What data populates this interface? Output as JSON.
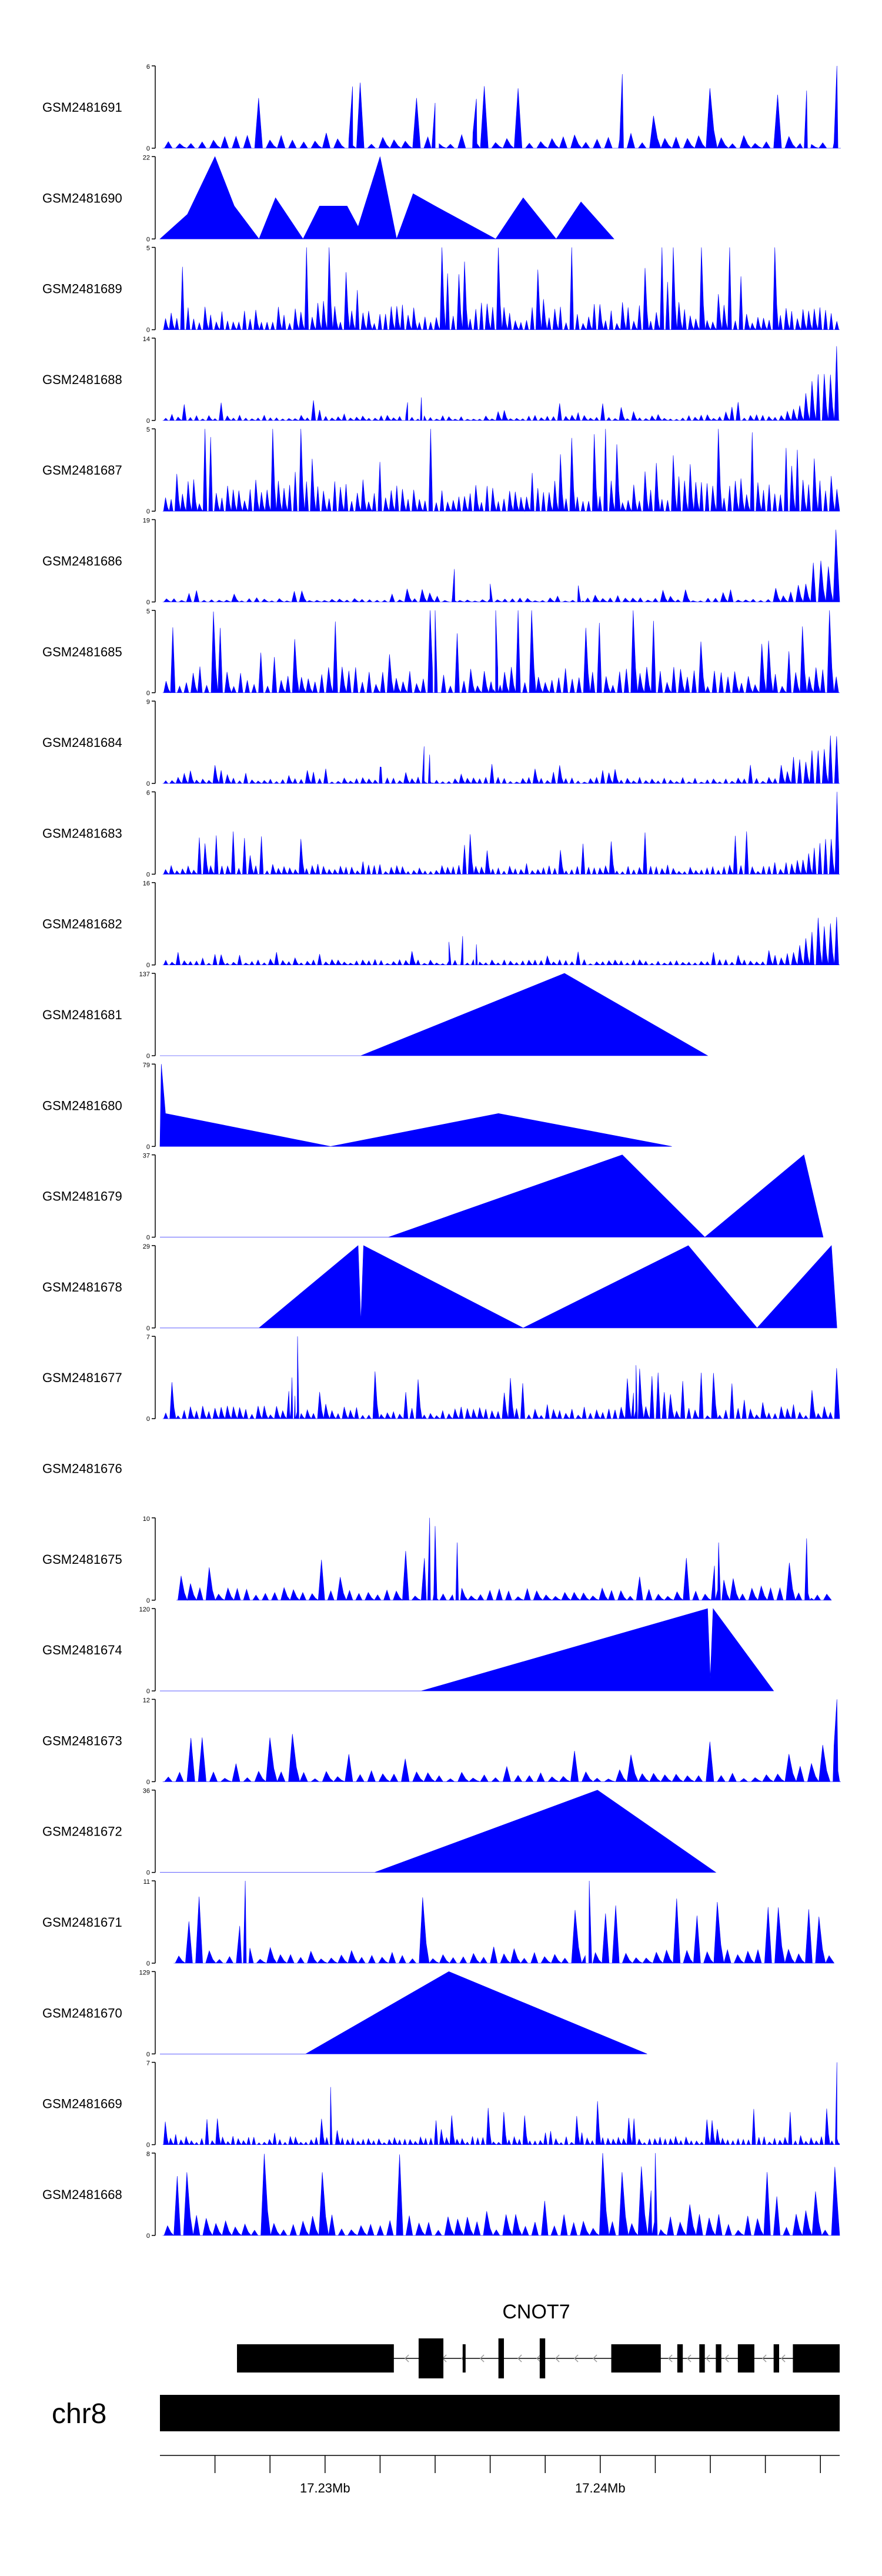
{
  "chart_data": {
    "type": "area",
    "xlim_mb": [
      17.222,
      17.2467
    ],
    "axis_ticks": [
      {
        "mb": 17.224,
        "label": ""
      },
      {
        "mb": 17.226,
        "label": ""
      },
      {
        "mb": 17.228,
        "label": "17.23Mb"
      },
      {
        "mb": 17.23,
        "label": ""
      },
      {
        "mb": 17.232,
        "label": ""
      },
      {
        "mb": 17.234,
        "label": ""
      },
      {
        "mb": 17.236,
        "label": ""
      },
      {
        "mb": 17.238,
        "label": "17.24Mb"
      },
      {
        "mb": 17.24,
        "label": ""
      },
      {
        "mb": 17.242,
        "label": ""
      },
      {
        "mb": 17.244,
        "label": ""
      },
      {
        "mb": 17.246,
        "label": ""
      }
    ],
    "chromosome": "chr8",
    "gene": {
      "name": "CNOT7",
      "start_mb": 17.2248,
      "end_mb": 17.2467,
      "exons": [
        [
          17.2248,
          17.2305
        ],
        [
          17.2314,
          17.2323
        ],
        [
          17.233,
          17.2331
        ],
        [
          17.2343,
          17.2345
        ],
        [
          17.2358,
          17.236
        ],
        [
          17.2384,
          17.2402
        ],
        [
          17.2408,
          17.241
        ],
        [
          17.2416,
          17.2418
        ],
        [
          17.2422,
          17.2424
        ],
        [
          17.243,
          17.2436
        ],
        [
          17.2443,
          17.2445
        ],
        [
          17.245,
          17.2467
        ]
      ]
    },
    "series": [
      {
        "name": "GSM2481691",
        "ymax": 6,
        "kind": "peaks",
        "seed": 11,
        "density": 60,
        "base": 0.15,
        "max_frac": 0.9,
        "tail": 0.0,
        "points": [
          [
            17.229,
            0.75
          ],
          [
            17.232,
            0.55
          ],
          [
            17.2335,
            0.6
          ],
          [
            17.2388,
            0.9
          ],
          [
            17.2455,
            0.7
          ],
          [
            17.2466,
            1.0
          ]
        ]
      },
      {
        "name": "GSM2481690",
        "ymax": 22,
        "kind": "points",
        "points": [
          [
            17.222,
            0
          ],
          [
            17.223,
            0.3
          ],
          [
            17.224,
            1.0
          ],
          [
            17.2247,
            0.4
          ],
          [
            17.2256,
            0
          ],
          [
            17.2262,
            0.5
          ],
          [
            17.2272,
            0
          ],
          [
            17.2278,
            0.4
          ],
          [
            17.2288,
            0.4
          ],
          [
            17.2292,
            0.15
          ],
          [
            17.23,
            1.0
          ],
          [
            17.2306,
            0
          ],
          [
            17.2312,
            0.55
          ],
          [
            17.232,
            0.4
          ],
          [
            17.2342,
            0
          ],
          [
            17.2352,
            0.5
          ],
          [
            17.2364,
            0
          ],
          [
            17.2373,
            0.45
          ],
          [
            17.2385,
            0
          ]
        ]
      },
      {
        "name": "GSM2481689",
        "ymax": 5,
        "kind": "peaks",
        "seed": 23,
        "density": 120,
        "base": 0.25,
        "max_frac": 0.95,
        "tail": 0.0,
        "points": []
      },
      {
        "name": "GSM2481688",
        "ymax": 14,
        "kind": "peaks",
        "seed": 37,
        "density": 110,
        "base": 0.05,
        "max_frac": 0.2,
        "tail": 0.95,
        "points": [
          [
            17.2315,
            0.28
          ],
          [
            17.231,
            0.22
          ]
        ]
      },
      {
        "name": "GSM2481687",
        "ymax": 5,
        "kind": "peaks",
        "seed": 41,
        "density": 120,
        "base": 0.3,
        "max_frac": 0.98,
        "tail": 0.0,
        "points": []
      },
      {
        "name": "GSM2481686",
        "ymax": 19,
        "kind": "peaks",
        "seed": 53,
        "density": 90,
        "base": 0.04,
        "max_frac": 0.15,
        "tail": 1.0,
        "points": [
          [
            17.2327,
            0.4
          ],
          [
            17.234,
            0.22
          ],
          [
            17.2372,
            0.2
          ]
        ]
      },
      {
        "name": "GSM2481685",
        "ymax": 5,
        "kind": "peaks",
        "seed": 67,
        "density": 100,
        "base": 0.25,
        "max_frac": 0.95,
        "tail": 0.0,
        "points": [
          [
            17.232,
            1.0
          ],
          [
            17.2342,
            1.0
          ]
        ]
      },
      {
        "name": "GSM2481684",
        "ymax": 9,
        "kind": "peaks",
        "seed": 71,
        "density": 110,
        "base": 0.06,
        "max_frac": 0.18,
        "tail": 0.95,
        "points": [
          [
            17.2316,
            0.45
          ],
          [
            17.2318,
            0.35
          ],
          [
            17.23,
            0.2
          ]
        ]
      },
      {
        "name": "GSM2481683",
        "ymax": 6,
        "kind": "peaks",
        "seed": 83,
        "density": 120,
        "base": 0.1,
        "max_frac": 0.45,
        "tail": 0.6,
        "points": [
          [
            17.2466,
            1.0
          ]
        ]
      },
      {
        "name": "GSM2481682",
        "ymax": 16,
        "kind": "peaks",
        "seed": 97,
        "density": 110,
        "base": 0.05,
        "max_frac": 0.12,
        "tail": 0.95,
        "points": [
          [
            17.233,
            0.35
          ],
          [
            17.2325,
            0.28
          ],
          [
            17.2335,
            0.25
          ]
        ]
      },
      {
        "name": "GSM2481681",
        "ymax": 137,
        "kind": "points",
        "points": [
          [
            17.222,
            0
          ],
          [
            17.2293,
            0
          ],
          [
            17.2367,
            1.0
          ],
          [
            17.2419,
            0
          ]
        ]
      },
      {
        "name": "GSM2481680",
        "ymax": 79,
        "kind": "points",
        "points": [
          [
            17.222,
            0
          ],
          [
            17.22205,
            1.0
          ],
          [
            17.2222,
            0.4
          ],
          [
            17.2282,
            0
          ],
          [
            17.2343,
            0.4
          ],
          [
            17.2406,
            0
          ]
        ]
      },
      {
        "name": "GSM2481679",
        "ymax": 37,
        "kind": "points",
        "points": [
          [
            17.222,
            0
          ],
          [
            17.2303,
            0
          ],
          [
            17.2388,
            1.0
          ],
          [
            17.2418,
            0
          ],
          [
            17.2454,
            1.0
          ],
          [
            17.2461,
            0
          ]
        ]
      },
      {
        "name": "GSM2481678",
        "ymax": 29,
        "kind": "points",
        "points": [
          [
            17.222,
            0
          ],
          [
            17.2256,
            0
          ],
          [
            17.2292,
            1.0
          ],
          [
            17.2293,
            0.08
          ],
          [
            17.2294,
            1.0
          ],
          [
            17.2352,
            0
          ],
          [
            17.2412,
            1.0
          ],
          [
            17.2437,
            0
          ],
          [
            17.2464,
            1.0
          ],
          [
            17.2466,
            0
          ]
        ]
      },
      {
        "name": "GSM2481677",
        "ymax": 7,
        "kind": "peaks",
        "seed": 103,
        "density": 110,
        "base": 0.12,
        "max_frac": 0.55,
        "tail": 0.0,
        "points": [
          [
            17.227,
            1.0
          ],
          [
            17.2268,
            0.5
          ],
          [
            17.2393,
            0.65
          ]
        ]
      },
      {
        "name": "GSM2481676",
        "ymax": null,
        "kind": "empty",
        "points": []
      },
      {
        "name": "GSM2481675",
        "ymax": 10,
        "kind": "peaks",
        "seed": 109,
        "density": 70,
        "base": 0.12,
        "max_frac": 0.5,
        "tail": 0.0,
        "start_mb": 17.2226,
        "end_mb": 17.2464,
        "points": [
          [
            17.2318,
            1.0
          ],
          [
            17.232,
            0.9
          ],
          [
            17.2328,
            0.7
          ],
          [
            17.2423,
            0.7
          ],
          [
            17.2455,
            0.75
          ]
        ]
      },
      {
        "name": "GSM2481674",
        "ymax": 120,
        "kind": "points",
        "points": [
          [
            17.222,
            0
          ],
          [
            17.2315,
            0
          ],
          [
            17.2419,
            1.0
          ],
          [
            17.242,
            0.15
          ],
          [
            17.2421,
            1.0
          ],
          [
            17.2443,
            0
          ]
        ]
      },
      {
        "name": "GSM2481673",
        "ymax": 12,
        "kind": "peaks",
        "seed": 113,
        "density": 60,
        "base": 0.1,
        "max_frac": 0.5,
        "tail": 0.7,
        "points": [
          [
            17.2466,
            1.0
          ]
        ]
      },
      {
        "name": "GSM2481672",
        "ymax": 36,
        "kind": "points",
        "points": [
          [
            17.222,
            0
          ],
          [
            17.2298,
            0
          ],
          [
            17.2379,
            1.0
          ],
          [
            17.2422,
            0
          ]
        ]
      },
      {
        "name": "GSM2481671",
        "ymax": 11,
        "kind": "peaks",
        "seed": 127,
        "density": 65,
        "base": 0.15,
        "max_frac": 0.7,
        "tail": 0.0,
        "start_mb": 17.2225,
        "end_mb": 17.2465,
        "points": [
          [
            17.2251,
            1.0
          ],
          [
            17.2376,
            1.0
          ]
        ]
      },
      {
        "name": "GSM2481670",
        "ymax": 129,
        "kind": "points",
        "points": [
          [
            17.222,
            0
          ],
          [
            17.2273,
            0
          ],
          [
            17.2325,
            1.0
          ],
          [
            17.2397,
            0
          ]
        ]
      },
      {
        "name": "GSM2481669",
        "ymax": 7,
        "kind": "peaks",
        "seed": 131,
        "density": 130,
        "base": 0.08,
        "max_frac": 0.45,
        "tail": 0.0,
        "points": [
          [
            17.2282,
            0.7
          ],
          [
            17.2466,
            1.0
          ]
        ]
      },
      {
        "name": "GSM2481668",
        "ymax": 8,
        "kind": "peaks",
        "seed": 139,
        "density": 70,
        "base": 0.2,
        "max_frac": 0.9,
        "tail": 0.0,
        "points": [
          [
            17.24,
            1.0
          ]
        ]
      }
    ]
  },
  "colors": {
    "track_fill": "#0000ff",
    "axis": "#000000",
    "text": "#000000",
    "gene": "#000000"
  }
}
